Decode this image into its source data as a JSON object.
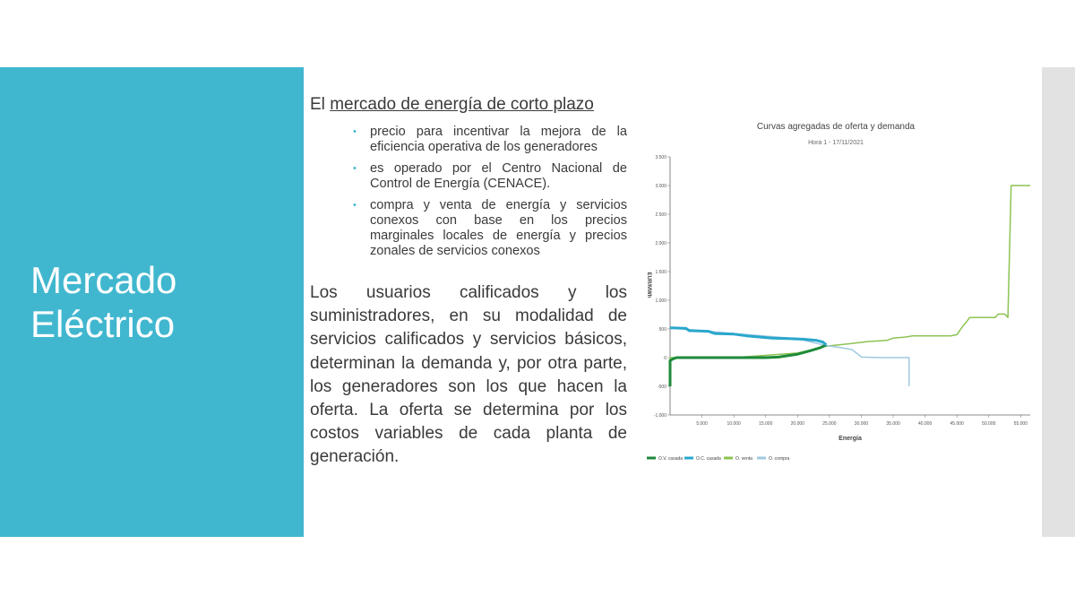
{
  "sidebar": {
    "title_line1": "Mercado",
    "title_line2": "Eléctrico"
  },
  "content": {
    "intro_prefix": "El ",
    "intro_link": "mercado de energía de corto plazo",
    "bullets": [
      "precio para incentivar la mejora de la eficiencia operativa de los generadores",
      "es operado por el Centro Nacional de Control de Energía (CENACE).",
      "compra y venta de energía y servicios conexos con base en los precios marginales locales de energía y precios zonales de servicios conexos"
    ],
    "paragraph": "Los usuarios calificados y los suministradores, en su modalidad de servicios calificados y servicios básicos, determinan la demanda y, por otra parte, los generadores son los que hacen la oferta. La oferta se determina por los costos variables de cada planta de generación."
  },
  "colors": {
    "sidebar": "#41b7cf",
    "accent_bullet": "#41b7cf",
    "right_strip": "#e2e2e2"
  },
  "chart_data": {
    "type": "line",
    "title": "Curvas agregadas de oferta y demanda",
    "subtitle": "Hora 1 - 17/11/2021",
    "xlabel": "Energía",
    "ylabel": "EUR/MWh",
    "xlim": [
      0,
      56500
    ],
    "ylim": [
      -1000,
      3500
    ],
    "xticks": [
      5000,
      10000,
      15000,
      20000,
      25000,
      30000,
      35000,
      40000,
      45000,
      50000,
      55000
    ],
    "xtick_labels": [
      "5.000",
      "10.000",
      "15.000",
      "20.000",
      "25.000",
      "30.000",
      "35.000",
      "40.000",
      "45.000",
      "50.000",
      "55.000"
    ],
    "yticks": [
      3500,
      3000,
      2500,
      2000,
      1500,
      1000,
      500,
      0,
      -500,
      -1000
    ],
    "ytick_labels": [
      "3.500",
      "3.000",
      "2.500",
      "2.000",
      "1.500",
      "1.000",
      "500",
      "0",
      "-500",
      "-1.000"
    ],
    "legend_position": "bottom",
    "series": [
      {
        "name": "O.V. casada",
        "color": "#1e8a3a",
        "width": 3,
        "points": [
          [
            0,
            -500
          ],
          [
            0,
            -50
          ],
          [
            500,
            -20
          ],
          [
            1000,
            0
          ],
          [
            5000,
            0
          ],
          [
            10000,
            0
          ],
          [
            15000,
            0
          ],
          [
            17000,
            10
          ],
          [
            20000,
            60
          ],
          [
            22000,
            120
          ],
          [
            23500,
            170
          ],
          [
            24500,
            220
          ]
        ]
      },
      {
        "name": "O.C. casada",
        "color": "#29a7cc",
        "width": 3,
        "points": [
          [
            0,
            520
          ],
          [
            2500,
            510
          ],
          [
            3000,
            470
          ],
          [
            6000,
            460
          ],
          [
            7000,
            420
          ],
          [
            10000,
            410
          ],
          [
            12000,
            380
          ],
          [
            14000,
            360
          ],
          [
            16000,
            340
          ],
          [
            19000,
            330
          ],
          [
            21000,
            320
          ],
          [
            23000,
            300
          ],
          [
            24000,
            270
          ],
          [
            24500,
            220
          ]
        ]
      },
      {
        "name": "O. venta",
        "color": "#8cc453",
        "width": 1.5,
        "points": [
          [
            0,
            -500
          ],
          [
            0,
            0
          ],
          [
            10000,
            0
          ],
          [
            20000,
            80
          ],
          [
            24500,
            200
          ],
          [
            28000,
            240
          ],
          [
            31000,
            280
          ],
          [
            34000,
            300
          ],
          [
            35000,
            340
          ],
          [
            37000,
            360
          ],
          [
            38000,
            380
          ],
          [
            44000,
            380
          ],
          [
            45000,
            400
          ],
          [
            45500,
            480
          ],
          [
            46000,
            560
          ],
          [
            46500,
            620
          ],
          [
            47000,
            700
          ],
          [
            51000,
            700
          ],
          [
            51500,
            760
          ],
          [
            52500,
            760
          ],
          [
            53000,
            700
          ],
          [
            53500,
            3000
          ],
          [
            56500,
            3000
          ]
        ]
      },
      {
        "name": "O. compra",
        "color": "#9fc9e0",
        "width": 1.5,
        "points": [
          [
            0,
            520
          ],
          [
            10000,
            420
          ],
          [
            20000,
            330
          ],
          [
            24500,
            210
          ],
          [
            26500,
            180
          ],
          [
            28500,
            140
          ],
          [
            29500,
            60
          ],
          [
            30000,
            10
          ],
          [
            33000,
            0
          ],
          [
            37500,
            0
          ],
          [
            37500,
            -500
          ]
        ]
      }
    ]
  }
}
